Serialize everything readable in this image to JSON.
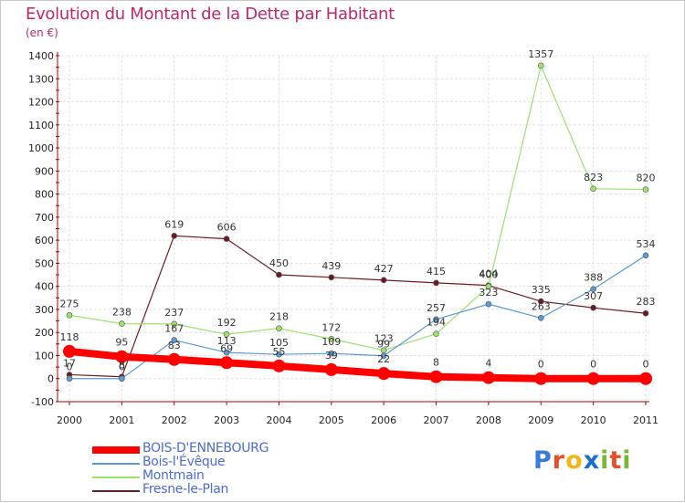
{
  "header": {
    "title": "Evolution du Montant de la Dette par Habitant",
    "unit": "(en €)"
  },
  "logo": {
    "text": "Proxiti",
    "letters": [
      {
        "ch": "P",
        "color": "#3a7ad9"
      },
      {
        "ch": "r",
        "color": "#e94c26"
      },
      {
        "ch": "o",
        "color": "#f3b51c"
      },
      {
        "ch": "x",
        "color": "#1a6fc9"
      },
      {
        "ch": "i",
        "color": "#7ab833"
      },
      {
        "ch": "t",
        "color": "#e94c26"
      },
      {
        "ch": "i",
        "color": "#7ab833"
      }
    ]
  },
  "chart_data": {
    "type": "line",
    "title": "Evolution du Montant de la Dette par Habitant",
    "ylabel": "(en €)",
    "x": [
      "2000",
      "2001",
      "2002",
      "2003",
      "2004",
      "2005",
      "2006",
      "2007",
      "2008",
      "2009",
      "2010",
      "2011"
    ],
    "ylim": [
      -100,
      1400
    ],
    "yticks": [
      -100,
      0,
      100,
      200,
      300,
      400,
      500,
      600,
      700,
      800,
      900,
      1000,
      1100,
      1200,
      1300,
      1400
    ],
    "grid": true,
    "legend_position": "bottom-left",
    "series": [
      {
        "name": "BOIS-D'ENNEBOURG",
        "color": "#ff0000",
        "width": 8,
        "marker": 7,
        "values": [
          118,
          95,
          83,
          69,
          55,
          39,
          22,
          8,
          4,
          0,
          0,
          0
        ]
      },
      {
        "name": "Bois-l'Évêque",
        "color": "#5b9bd5",
        "width": 1.2,
        "marker": 3,
        "values": [
          0,
          0,
          167,
          113,
          105,
          109,
          99,
          257,
          323,
          263,
          388,
          534
        ]
      },
      {
        "name": "Montmain",
        "color": "#9be26b",
        "width": 1.2,
        "marker": 3,
        "values": [
          275,
          238,
          237,
          192,
          218,
          172,
          123,
          194,
          400,
          1357,
          823,
          820
        ]
      },
      {
        "name": "Fresne-le-Plan",
        "color": "#6b1a23",
        "width": 1.2,
        "marker": 3,
        "values": [
          17,
          8,
          619,
          606,
          450,
          439,
          427,
          415,
          404,
          335,
          307,
          283
        ]
      }
    ],
    "data_labels": [
      {
        "series": 0,
        "values": [
          "118",
          "95",
          "83",
          "69",
          "55",
          "39",
          "22",
          "8",
          "4",
          "0",
          "0",
          "0"
        ]
      },
      {
        "series": 1,
        "values": [
          "0",
          "0",
          "167",
          "113",
          "105",
          "109",
          "99",
          "257",
          "323",
          "263",
          "388",
          "534"
        ]
      },
      {
        "series": 2,
        "values": [
          "275",
          "238",
          "237",
          "192",
          "218",
          "172",
          "123",
          "194",
          "400",
          "1357",
          "823",
          "820"
        ]
      },
      {
        "series": 3,
        "values": [
          "17",
          "8",
          "619",
          "606",
          "450",
          "439",
          "427",
          "415",
          "404",
          "335",
          "307",
          "283"
        ]
      }
    ]
  }
}
